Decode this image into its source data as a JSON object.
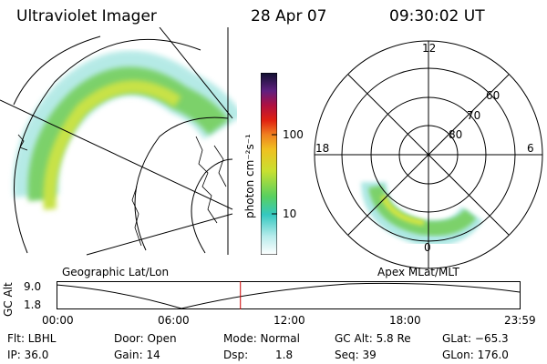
{
  "header": {
    "instrument": "Ultraviolet Imager",
    "date": "28 Apr 07",
    "time": "09:30:02 UT"
  },
  "colorbar": {
    "unit_label": "photon cm⁻²s⁻¹",
    "tick_labels": [
      "100",
      "10"
    ]
  },
  "panels": {
    "geographic_label": "Geographic Lat/Lon",
    "apex_label": "Apex MLat/MLT"
  },
  "polar_plot": {
    "mlt_labels": [
      "12",
      "18",
      "6",
      "0"
    ],
    "lat_labels": [
      "60",
      "70",
      "80"
    ]
  },
  "altitude_plot": {
    "ylabel": "GC Alt",
    "ytick_labels": [
      "9.0",
      "1.8"
    ],
    "xtick_labels": [
      "00:00",
      "06:00",
      "12:00",
      "18:00",
      "23:59"
    ],
    "current_time_marker": "09:30"
  },
  "info": {
    "row1": {
      "flt": "Flt: LBHL",
      "door": "Door: Open",
      "mode": "Mode: Normal",
      "gc_alt": "GC Alt: 5.8 Re",
      "glat": "GLat: −65.3"
    },
    "row2": {
      "ip": "IP: 36.0",
      "gain": "Gain: 14",
      "dsp_label": "Dsp:",
      "dsp_value": "1.8",
      "seq": "Seq: 39",
      "glon": "GLon: 176.0"
    }
  },
  "colors": {
    "line": "#000000",
    "marker": "#cc0000",
    "aurora_low": "#aee8e4",
    "aurora_mid": "#7cd16a",
    "aurora_high": "#d6e640"
  }
}
